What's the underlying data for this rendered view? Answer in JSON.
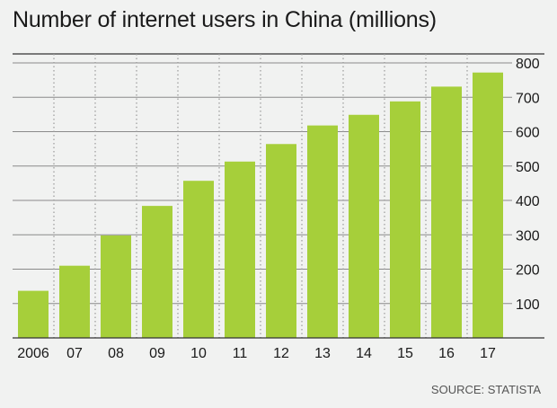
{
  "chart_data": {
    "type": "bar",
    "title": "Number of internet users in China (millions)",
    "source": "SOURCE: STATISTA",
    "categories": [
      "2006",
      "07",
      "08",
      "09",
      "10",
      "11",
      "12",
      "13",
      "14",
      "15",
      "16",
      "17"
    ],
    "values": [
      137,
      210,
      298,
      384,
      457,
      513,
      564,
      618,
      649,
      688,
      731,
      772
    ],
    "ylim": [
      0,
      800
    ],
    "yticks": [
      100,
      200,
      300,
      400,
      500,
      600,
      700,
      800
    ],
    "y_axis_position": "right",
    "grid": true,
    "xlabel": "",
    "ylabel": "",
    "colors": {
      "bar": "#a6cf3a",
      "gridline": "#8a8a8a",
      "vertical_grid": "#9a9a9a",
      "axis": "#333333",
      "text": "#1a1a1a",
      "background": "#f1f2f1"
    }
  }
}
